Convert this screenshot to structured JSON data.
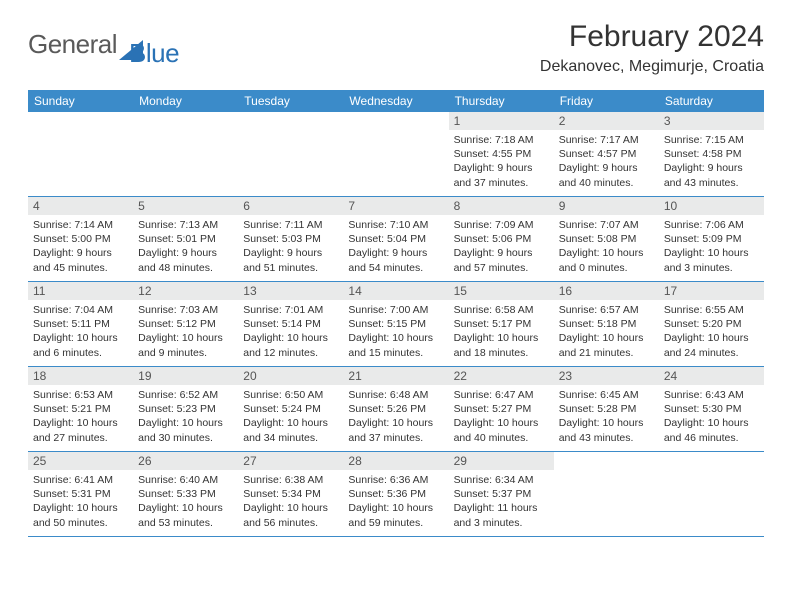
{
  "brand": {
    "part1": "General",
    "part2": "Blue"
  },
  "title": {
    "month": "February 2024",
    "location": "Dekanovec, Megimurje, Croatia"
  },
  "colors": {
    "header_bg": "#3b8bc9",
    "header_text": "#ffffff",
    "daynum_bg": "#e9eaea",
    "border": "#3b8bc9",
    "logo_blue": "#2a72b5",
    "text": "#333333"
  },
  "day_names": [
    "Sunday",
    "Monday",
    "Tuesday",
    "Wednesday",
    "Thursday",
    "Friday",
    "Saturday"
  ],
  "weeks": [
    [
      null,
      null,
      null,
      null,
      {
        "n": "1",
        "sr": "7:18 AM",
        "ss": "4:55 PM",
        "dl1": "9 hours",
        "dl2": "and 37 minutes."
      },
      {
        "n": "2",
        "sr": "7:17 AM",
        "ss": "4:57 PM",
        "dl1": "9 hours",
        "dl2": "and 40 minutes."
      },
      {
        "n": "3",
        "sr": "7:15 AM",
        "ss": "4:58 PM",
        "dl1": "9 hours",
        "dl2": "and 43 minutes."
      }
    ],
    [
      {
        "n": "4",
        "sr": "7:14 AM",
        "ss": "5:00 PM",
        "dl1": "9 hours",
        "dl2": "and 45 minutes."
      },
      {
        "n": "5",
        "sr": "7:13 AM",
        "ss": "5:01 PM",
        "dl1": "9 hours",
        "dl2": "and 48 minutes."
      },
      {
        "n": "6",
        "sr": "7:11 AM",
        "ss": "5:03 PM",
        "dl1": "9 hours",
        "dl2": "and 51 minutes."
      },
      {
        "n": "7",
        "sr": "7:10 AM",
        "ss": "5:04 PM",
        "dl1": "9 hours",
        "dl2": "and 54 minutes."
      },
      {
        "n": "8",
        "sr": "7:09 AM",
        "ss": "5:06 PM",
        "dl1": "9 hours",
        "dl2": "and 57 minutes."
      },
      {
        "n": "9",
        "sr": "7:07 AM",
        "ss": "5:08 PM",
        "dl1": "10 hours",
        "dl2": "and 0 minutes."
      },
      {
        "n": "10",
        "sr": "7:06 AM",
        "ss": "5:09 PM",
        "dl1": "10 hours",
        "dl2": "and 3 minutes."
      }
    ],
    [
      {
        "n": "11",
        "sr": "7:04 AM",
        "ss": "5:11 PM",
        "dl1": "10 hours",
        "dl2": "and 6 minutes."
      },
      {
        "n": "12",
        "sr": "7:03 AM",
        "ss": "5:12 PM",
        "dl1": "10 hours",
        "dl2": "and 9 minutes."
      },
      {
        "n": "13",
        "sr": "7:01 AM",
        "ss": "5:14 PM",
        "dl1": "10 hours",
        "dl2": "and 12 minutes."
      },
      {
        "n": "14",
        "sr": "7:00 AM",
        "ss": "5:15 PM",
        "dl1": "10 hours",
        "dl2": "and 15 minutes."
      },
      {
        "n": "15",
        "sr": "6:58 AM",
        "ss": "5:17 PM",
        "dl1": "10 hours",
        "dl2": "and 18 minutes."
      },
      {
        "n": "16",
        "sr": "6:57 AM",
        "ss": "5:18 PM",
        "dl1": "10 hours",
        "dl2": "and 21 minutes."
      },
      {
        "n": "17",
        "sr": "6:55 AM",
        "ss": "5:20 PM",
        "dl1": "10 hours",
        "dl2": "and 24 minutes."
      }
    ],
    [
      {
        "n": "18",
        "sr": "6:53 AM",
        "ss": "5:21 PM",
        "dl1": "10 hours",
        "dl2": "and 27 minutes."
      },
      {
        "n": "19",
        "sr": "6:52 AM",
        "ss": "5:23 PM",
        "dl1": "10 hours",
        "dl2": "and 30 minutes."
      },
      {
        "n": "20",
        "sr": "6:50 AM",
        "ss": "5:24 PM",
        "dl1": "10 hours",
        "dl2": "and 34 minutes."
      },
      {
        "n": "21",
        "sr": "6:48 AM",
        "ss": "5:26 PM",
        "dl1": "10 hours",
        "dl2": "and 37 minutes."
      },
      {
        "n": "22",
        "sr": "6:47 AM",
        "ss": "5:27 PM",
        "dl1": "10 hours",
        "dl2": "and 40 minutes."
      },
      {
        "n": "23",
        "sr": "6:45 AM",
        "ss": "5:28 PM",
        "dl1": "10 hours",
        "dl2": "and 43 minutes."
      },
      {
        "n": "24",
        "sr": "6:43 AM",
        "ss": "5:30 PM",
        "dl1": "10 hours",
        "dl2": "and 46 minutes."
      }
    ],
    [
      {
        "n": "25",
        "sr": "6:41 AM",
        "ss": "5:31 PM",
        "dl1": "10 hours",
        "dl2": "and 50 minutes."
      },
      {
        "n": "26",
        "sr": "6:40 AM",
        "ss": "5:33 PM",
        "dl1": "10 hours",
        "dl2": "and 53 minutes."
      },
      {
        "n": "27",
        "sr": "6:38 AM",
        "ss": "5:34 PM",
        "dl1": "10 hours",
        "dl2": "and 56 minutes."
      },
      {
        "n": "28",
        "sr": "6:36 AM",
        "ss": "5:36 PM",
        "dl1": "10 hours",
        "dl2": "and 59 minutes."
      },
      {
        "n": "29",
        "sr": "6:34 AM",
        "ss": "5:37 PM",
        "dl1": "11 hours",
        "dl2": "and 3 minutes."
      },
      null,
      null
    ]
  ],
  "labels": {
    "sunrise": "Sunrise: ",
    "sunset": "Sunset: ",
    "daylight": "Daylight: "
  }
}
